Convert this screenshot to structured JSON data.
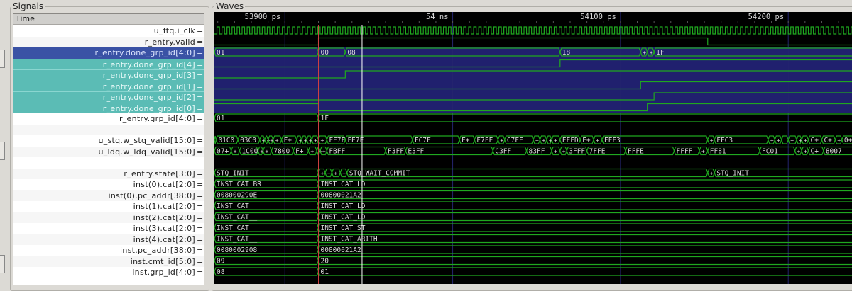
{
  "panels": {
    "signals_title": "Signals",
    "waves_title": "Waves",
    "time_header": "Time"
  },
  "colors": {
    "wave": "#1fa81f",
    "wave_bright": "#33ff33",
    "bus_text": "#d8d8d8",
    "grid": "#24246e",
    "highlight_bg": "#20206e",
    "marker": "#d04040",
    "cursor": "#ffffff",
    "selected_row": "#3a52a5",
    "highlighted_row": "#5bbcb5"
  },
  "timeline": {
    "range_ps": [
      53858,
      54238
    ],
    "labels": [
      {
        "t": 53900,
        "text": "53900 ps"
      },
      {
        "t": 54000,
        "text": "54 ns"
      },
      {
        "t": 54100,
        "text": "54100 ps"
      },
      {
        "t": 54200,
        "text": "54200 ps"
      }
    ],
    "marker_ps": 53920,
    "cursor_ps": 53946
  },
  "signals": [
    {
      "name": "u_ftq.i_clk",
      "kind": "clock",
      "period_ps": 3
    },
    {
      "name": "r_entry.valid",
      "kind": "bit",
      "init": 0,
      "changes": [
        [
          53920,
          1
        ],
        [
          54152,
          0
        ]
      ]
    },
    {
      "name": "r_entry.done_grp_id[4:0]",
      "kind": "bus",
      "state": "selected",
      "segs": [
        [
          53858,
          "01"
        ],
        [
          53920,
          "00"
        ],
        [
          53936,
          "08"
        ],
        [
          54064,
          "18"
        ],
        [
          54112,
          "+"
        ],
        [
          54116,
          "+"
        ],
        [
          54120,
          "1F"
        ]
      ]
    },
    {
      "name": "r_entry.done_grp_id[4]",
      "kind": "bit",
      "state": "highlighted",
      "init": 0,
      "changes": [
        [
          54064,
          1
        ]
      ]
    },
    {
      "name": "r_entry.done_grp_id[3]",
      "kind": "bit",
      "state": "highlighted",
      "init": 0,
      "changes": [
        [
          53936,
          1
        ]
      ]
    },
    {
      "name": "r_entry.done_grp_id[1]",
      "kind": "bit",
      "state": "highlighted",
      "init": 0,
      "changes": [
        [
          54112,
          1
        ]
      ]
    },
    {
      "name": "r_entry.done_grp_id[2]",
      "kind": "bit",
      "state": "highlighted",
      "init": 0,
      "changes": [
        [
          54120,
          1
        ]
      ]
    },
    {
      "name": "r_entry.done_grp_id[0]",
      "kind": "bit",
      "state": "highlighted",
      "init": 1,
      "changes": [
        [
          53920,
          0
        ],
        [
          54116,
          1
        ]
      ]
    },
    {
      "name": "r_entry.grp_id[4:0]",
      "kind": "bus",
      "segs": [
        [
          53858,
          "01"
        ],
        [
          53920,
          "1F"
        ]
      ]
    },
    {
      "name": "",
      "kind": "blank"
    },
    {
      "name": "u_stq.w_stq_valid[15:0]",
      "kind": "bus",
      "segs": [
        [
          53858,
          ""
        ],
        [
          53859,
          "01C0"
        ],
        [
          53872,
          "03C0"
        ],
        [
          53885,
          "+"
        ],
        [
          53888,
          "+"
        ],
        [
          53890,
          "+"
        ],
        [
          53893,
          "+"
        ],
        [
          53898,
          "F+"
        ],
        [
          53907,
          "+"
        ],
        [
          53910,
          "+"
        ],
        [
          53913,
          "+"
        ],
        [
          53916,
          "+"
        ],
        [
          53920,
          "+"
        ],
        [
          53925,
          "FF7F"
        ],
        [
          53936,
          "FE7F"
        ],
        [
          53976,
          "FC7F"
        ],
        [
          54004,
          "F+"
        ],
        [
          54013,
          "F7FF"
        ],
        [
          54027,
          "+"
        ],
        [
          54031,
          "C7FF"
        ],
        [
          54048,
          "+"
        ],
        [
          54052,
          "+"
        ],
        [
          54056,
          "+"
        ],
        [
          54059,
          "+"
        ],
        [
          54064,
          "FFFD"
        ],
        [
          54076,
          "F+"
        ],
        [
          54084,
          "+"
        ],
        [
          54089,
          "FFF3"
        ],
        [
          54152,
          "+"
        ],
        [
          54156,
          "FFC3"
        ],
        [
          54188,
          "+"
        ],
        [
          54192,
          "+"
        ],
        [
          54196,
          ""
        ],
        [
          54200,
          "+"
        ],
        [
          54205,
          "+"
        ],
        [
          54208,
          "+"
        ],
        [
          54212,
          "C+"
        ],
        [
          54220,
          "C+"
        ],
        [
          54228,
          "+"
        ],
        [
          54232,
          "0+"
        ]
      ]
    },
    {
      "name": "u_ldq.w_ldq_valid[15:0]",
      "kind": "bus",
      "segs": [
        [
          53858,
          "07+"
        ],
        [
          53868,
          "+"
        ],
        [
          53873,
          "1C00"
        ],
        [
          53884,
          "+"
        ],
        [
          53887,
          "+"
        ],
        [
          53892,
          "7800"
        ],
        [
          53905,
          "F+"
        ],
        [
          53914,
          "+"
        ],
        [
          53919,
          "+"
        ],
        [
          53921,
          "+"
        ],
        [
          53925,
          "FBFF"
        ],
        [
          53960,
          "F3FF"
        ],
        [
          53972,
          "E3FF"
        ],
        [
          54024,
          "C3FF"
        ],
        [
          54044,
          "83FF"
        ],
        [
          54059,
          "+"
        ],
        [
          54064,
          "+"
        ],
        [
          54068,
          "3FFF"
        ],
        [
          54080,
          "7FFE"
        ],
        [
          54103,
          "FFFE"
        ],
        [
          54132,
          "FFFF"
        ],
        [
          54147,
          "+"
        ],
        [
          54152,
          "FF81"
        ],
        [
          54183,
          "FC01"
        ],
        [
          54204,
          "+"
        ],
        [
          54208,
          "+"
        ],
        [
          54212,
          "C+"
        ],
        [
          54221,
          "8007"
        ]
      ]
    },
    {
      "name": "",
      "kind": "blank"
    },
    {
      "name": "r_entry.state[3:0]",
      "kind": "bus",
      "segs": [
        [
          53858,
          "STQ_INIT"
        ],
        [
          53920,
          "+"
        ],
        [
          53924,
          "+"
        ],
        [
          53928,
          "+"
        ],
        [
          53933,
          "+"
        ],
        [
          53937,
          "STQ_WAIT_COMMIT"
        ],
        [
          54152,
          "+"
        ],
        [
          54156,
          "STQ_INIT"
        ]
      ]
    },
    {
      "name": "inst(0).cat[2:0]",
      "kind": "bus",
      "segs": [
        [
          53858,
          "INST_CAT_BR"
        ],
        [
          53920,
          "INST_CAT_LD"
        ]
      ]
    },
    {
      "name": "inst(0).pc_addr[38:0]",
      "kind": "bus",
      "segs": [
        [
          53858,
          "008000290E"
        ],
        [
          53920,
          "00800021A2"
        ]
      ]
    },
    {
      "name": "inst(1).cat[2:0]",
      "kind": "bus",
      "segs": [
        [
          53858,
          "INST_CAT__"
        ],
        [
          53920,
          "INST_CAT_LD"
        ]
      ]
    },
    {
      "name": "inst(2).cat[2:0]",
      "kind": "bus",
      "segs": [
        [
          53858,
          "INST_CAT__"
        ],
        [
          53920,
          "INST_CAT_LD"
        ]
      ]
    },
    {
      "name": "inst(3).cat[2:0]",
      "kind": "bus",
      "segs": [
        [
          53858,
          "INST_CAT__"
        ],
        [
          53920,
          "INST_CAT_ST"
        ]
      ]
    },
    {
      "name": "inst(4).cat[2:0]",
      "kind": "bus",
      "segs": [
        [
          53858,
          "INST_CAT__"
        ],
        [
          53920,
          "INST_CAT_ARITH"
        ]
      ]
    },
    {
      "name": "inst.pc_addr[38:0]",
      "kind": "bus",
      "segs": [
        [
          53858,
          "0080002908"
        ],
        [
          53920,
          "00800021A2"
        ]
      ]
    },
    {
      "name": "inst.cmt_id[5:0]",
      "kind": "bus",
      "segs": [
        [
          53858,
          "09"
        ],
        [
          53920,
          "20"
        ]
      ]
    },
    {
      "name": "inst.grp_id[4:0]",
      "kind": "bus",
      "segs": [
        [
          53858,
          "08"
        ],
        [
          53920,
          "01"
        ]
      ]
    }
  ]
}
